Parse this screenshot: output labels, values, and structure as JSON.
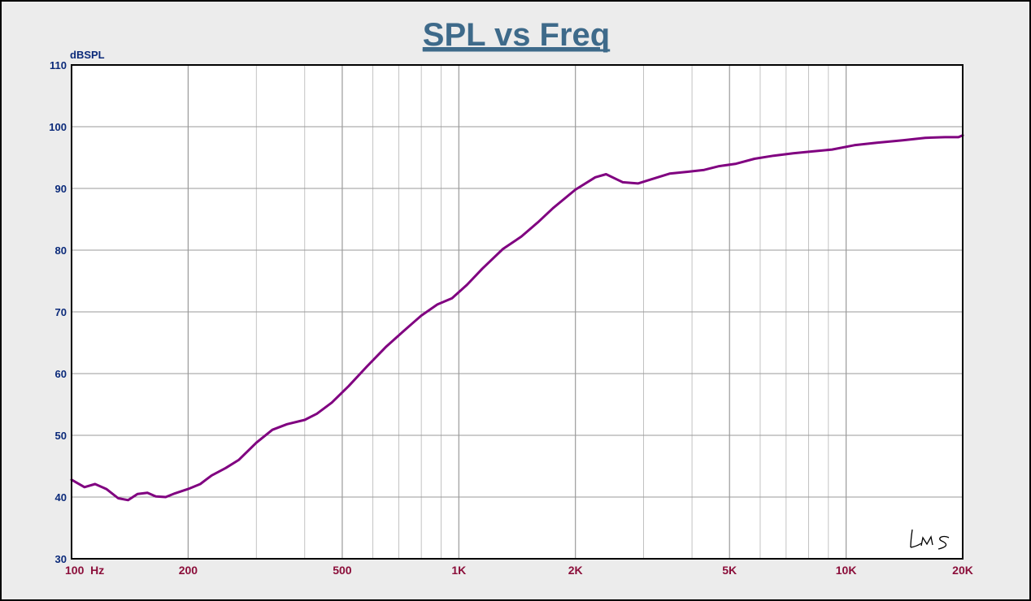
{
  "chart_data": {
    "type": "line",
    "title": "SPL vs Freq",
    "ylabel": "dBSPL",
    "xlabel": "",
    "xscale": "log",
    "xlim": [
      100,
      20000
    ],
    "ylim": [
      30,
      110
    ],
    "grid": true,
    "yticks": [
      30,
      40,
      50,
      60,
      70,
      80,
      90,
      100,
      110
    ],
    "ytick_labels": [
      "30",
      "40",
      "50",
      "60",
      "70",
      "80",
      "90",
      "100",
      "110"
    ],
    "xticks": [
      100,
      200,
      500,
      1000,
      2000,
      5000,
      10000,
      20000
    ],
    "xtick_labels": [
      "100  Hz",
      "200",
      "500",
      "1K",
      "2K",
      "5K",
      "10K",
      "20K"
    ],
    "watermark": "LMS",
    "colors": {
      "series": "#800080",
      "title": "#3e6a8a",
      "ytick": "#0b2a7a",
      "xtick": "#8b0e3a",
      "plot_bg": "#ffffff",
      "grid": "#b4b4b4"
    },
    "series": [
      {
        "x": [
          100,
          108,
          115,
          123,
          132,
          140,
          148,
          157,
          165,
          175,
          185,
          200,
          215,
          230,
          250,
          270,
          300,
          330,
          360,
          400,
          430,
          470,
          520,
          580,
          650,
          720,
          800,
          880,
          960,
          1050,
          1150,
          1300,
          1450,
          1600,
          1750,
          2000,
          2250,
          2400,
          2650,
          2900,
          3150,
          3500,
          3900,
          4300,
          4700,
          5200,
          5800,
          6500,
          7300,
          8200,
          9200,
          10500,
          12000,
          14000,
          16000,
          18000,
          19500,
          20000
        ],
        "y": [
          42.8,
          41.6,
          42.1,
          41.3,
          39.8,
          39.5,
          40.5,
          40.7,
          40.1,
          40.0,
          40.6,
          41.3,
          42.1,
          43.5,
          44.7,
          46.0,
          48.8,
          50.9,
          51.8,
          52.5,
          53.5,
          55.3,
          58.0,
          61.2,
          64.4,
          66.9,
          69.4,
          71.2,
          72.2,
          74.4,
          77.0,
          80.2,
          82.2,
          84.5,
          86.8,
          89.8,
          91.8,
          92.3,
          91.0,
          90.8,
          91.5,
          92.4,
          92.7,
          93.0,
          93.6,
          94.0,
          94.8,
          95.3,
          95.7,
          96.0,
          96.3,
          97.0,
          97.4,
          97.8,
          98.2,
          98.3,
          98.3,
          98.6
        ]
      }
    ]
  }
}
